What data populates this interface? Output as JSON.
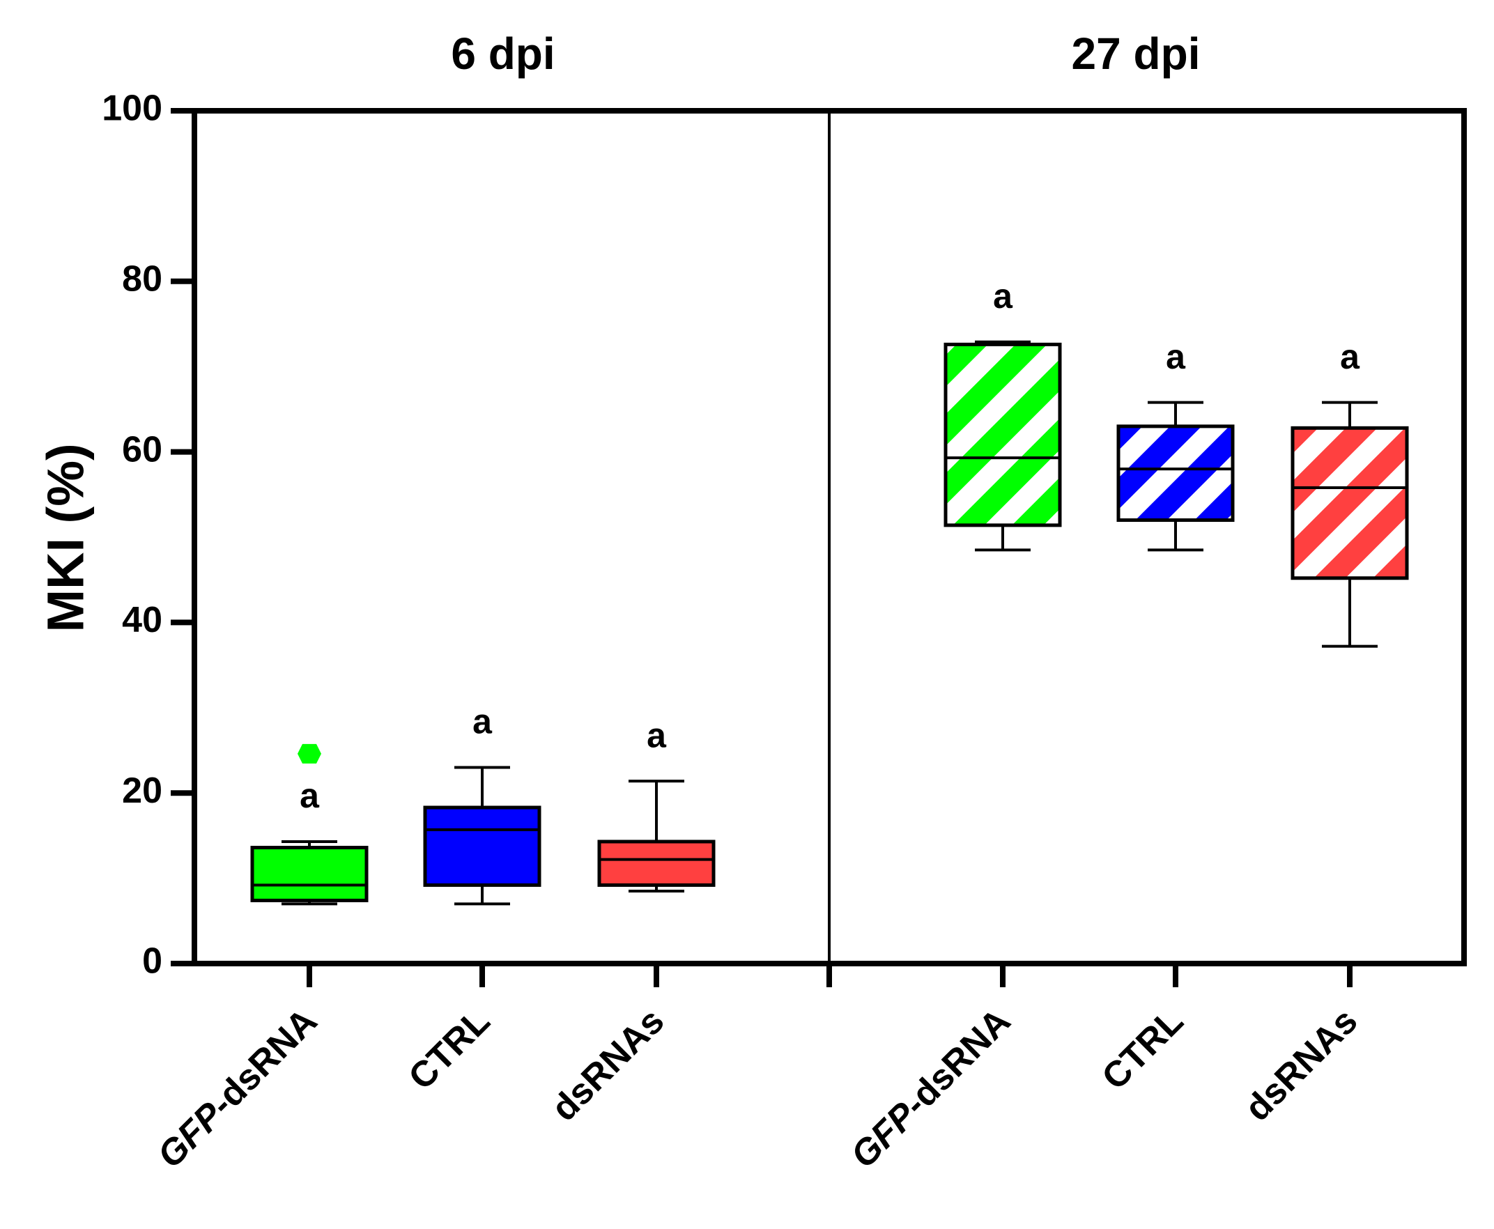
{
  "chart_data": {
    "type": "box",
    "ylabel": "MKI (%)",
    "ylim": [
      0,
      100
    ],
    "yticks": [
      0,
      20,
      40,
      60,
      80,
      100
    ],
    "panels": [
      {
        "title": "6 dpi",
        "groups": [
          {
            "label": "GFP-dsRNA",
            "italic_part": "GFP",
            "plain_part": "-dsRNA",
            "color": "#00ff00",
            "hatched": false,
            "min": 7.0,
            "q1": 7.4,
            "median": 9.2,
            "q3": 13.6,
            "max": 14.3,
            "outliers": [
              24.6
            ],
            "letter": "a"
          },
          {
            "label": "CTRL",
            "italic_part": "",
            "plain_part": "CTRL",
            "color": "#0000ff",
            "hatched": false,
            "min": 7.0,
            "q1": 9.2,
            "median": 15.7,
            "q3": 18.3,
            "max": 23.0,
            "outliers": [],
            "letter": "a"
          },
          {
            "label": "dsRNAs",
            "italic_part": "",
            "plain_part": "dsRNAs",
            "color": "#ff4040",
            "hatched": false,
            "min": 8.5,
            "q1": 9.2,
            "median": 12.2,
            "q3": 14.3,
            "max": 21.4,
            "outliers": [],
            "letter": "a"
          }
        ]
      },
      {
        "title": "27 dpi",
        "groups": [
          {
            "label": "GFP-dsRNA",
            "italic_part": "GFP",
            "plain_part": "-dsRNA",
            "color": "#00ff00",
            "hatched": true,
            "min": 48.5,
            "q1": 51.4,
            "median": 59.3,
            "q3": 72.6,
            "max": 72.9,
            "outliers": [],
            "letter": "a"
          },
          {
            "label": "CTRL",
            "italic_part": "",
            "plain_part": "CTRL",
            "color": "#0000ff",
            "hatched": true,
            "min": 48.5,
            "q1": 52.0,
            "median": 58.0,
            "q3": 63.0,
            "max": 65.8,
            "outliers": [],
            "letter": "a"
          },
          {
            "label": "dsRNAs",
            "italic_part": "",
            "plain_part": "dsRNAs",
            "color": "#ff4040",
            "hatched": true,
            "min": 37.2,
            "q1": 45.2,
            "median": 55.8,
            "q3": 62.8,
            "max": 65.8,
            "outliers": [],
            "letter": "a"
          }
        ]
      }
    ]
  }
}
